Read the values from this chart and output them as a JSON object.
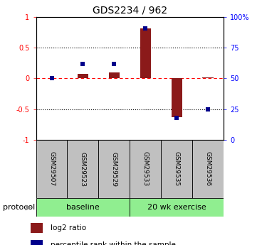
{
  "title": "GDS2234 / 962",
  "samples": [
    "GSM29507",
    "GSM29523",
    "GSM29529",
    "GSM29533",
    "GSM29535",
    "GSM29536"
  ],
  "log2_ratio": [
    0.0,
    0.08,
    0.1,
    0.82,
    -0.63,
    0.02
  ],
  "percentile_rank": [
    50,
    62,
    62,
    91,
    18,
    25
  ],
  "bar_color": "#8B1A1A",
  "dot_color": "#00008B",
  "ylim_left": [
    -1.0,
    1.0
  ],
  "ylim_right": [
    0,
    100
  ],
  "yticks_left": [
    -1.0,
    -0.5,
    0.0,
    0.5,
    1.0
  ],
  "yticks_right": [
    0,
    25,
    50,
    75,
    100
  ],
  "ytick_labels_left": [
    "-1",
    "-0.5",
    "0",
    "0.5",
    "1"
  ],
  "ytick_labels_right": [
    "0",
    "25",
    "50",
    "75",
    "100%"
  ],
  "legend_entries": [
    "log2 ratio",
    "percentile rank within the sample"
  ],
  "protocol_label": "protocol",
  "sample_box_color": "#C0C0C0",
  "baseline_color": "#90EE90",
  "exercise_color": "#90EE90",
  "baseline_label": "baseline",
  "exercise_label": "20 wk exercise",
  "baseline_samples": 3,
  "exercise_samples": 3
}
